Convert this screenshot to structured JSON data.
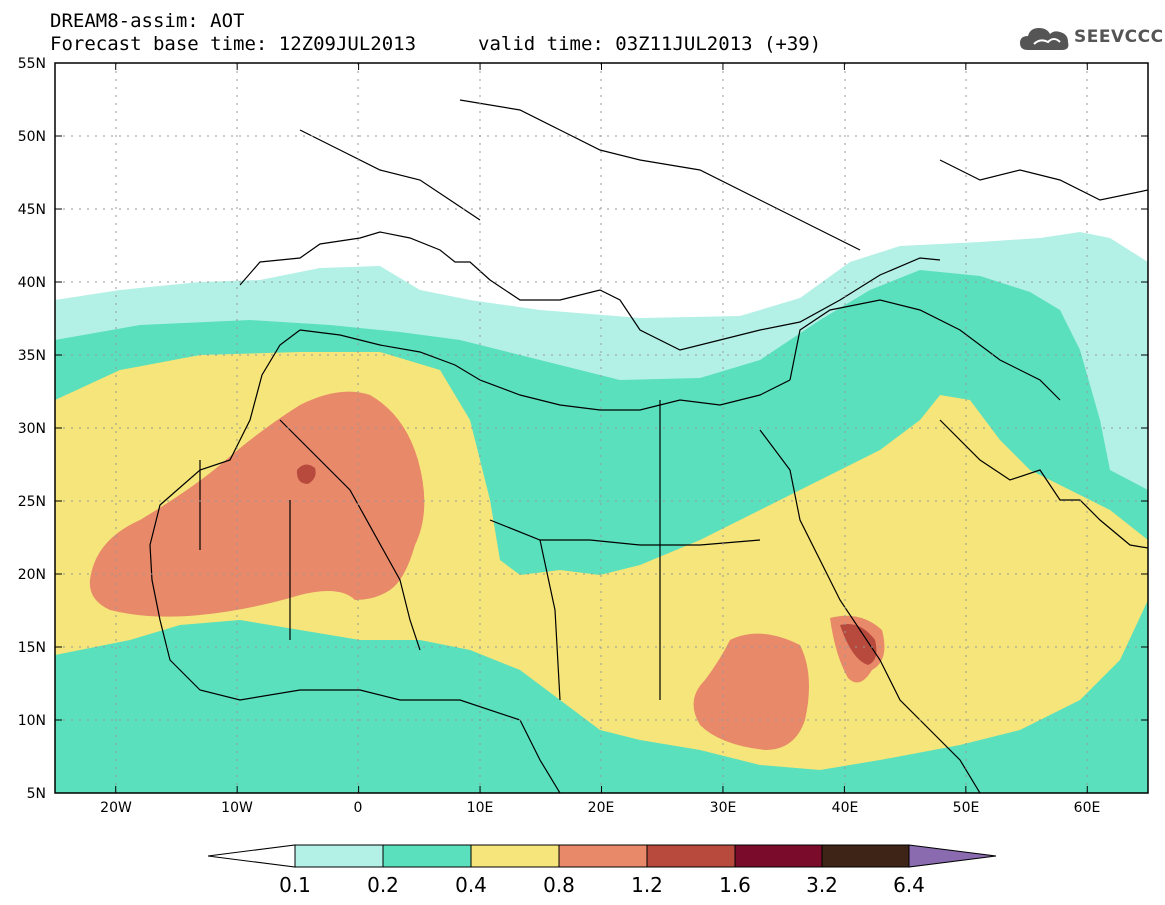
{
  "header": {
    "title": "DREAM8-assim: AOT",
    "forecast_base": "Forecast base time: 12Z09JUL2013",
    "valid": "valid time: 03Z11JUL2013 (+39)"
  },
  "logo": {
    "text": "SEEVCCC",
    "icon": "cloud-icon"
  },
  "map": {
    "lat_labels": [
      "55N",
      "50N",
      "45N",
      "40N",
      "35N",
      "30N",
      "25N",
      "20N",
      "15N",
      "10N",
      "5N"
    ],
    "lon_labels": [
      "20W",
      "10W",
      "0",
      "10E",
      "20E",
      "30E",
      "40E",
      "50E",
      "60E"
    ],
    "lat_range": [
      5,
      55
    ],
    "lon_range": [
      -25,
      65
    ],
    "grid": true
  },
  "legend": {
    "labels": [
      "0.1",
      "0.2",
      "0.4",
      "0.8",
      "1.2",
      "1.6",
      "3.2",
      "6.4"
    ],
    "colors": [
      "#ffffff",
      "#b3f0e6",
      "#5ae0bd",
      "#f5e57a",
      "#e8896a",
      "#b84a3d",
      "#7a0b2a",
      "#3d2416",
      "#8a6bb0"
    ]
  }
}
